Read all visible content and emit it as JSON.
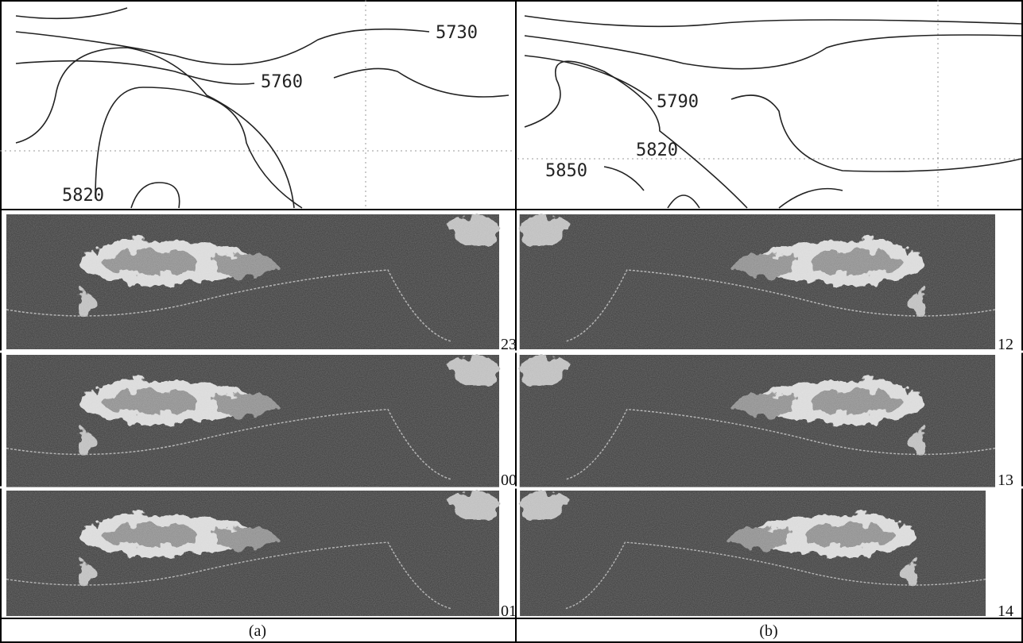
{
  "panels": [
    {
      "contour_labels": [
        "5730",
        "5760",
        "5820"
      ],
      "image_labels": [
        "23",
        "00",
        "01"
      ],
      "caption": "(a)"
    },
    {
      "contour_labels": [
        "5790",
        "5820",
        "5850"
      ],
      "image_labels": [
        "12",
        "13",
        "14"
      ],
      "caption": "(b)"
    }
  ]
}
